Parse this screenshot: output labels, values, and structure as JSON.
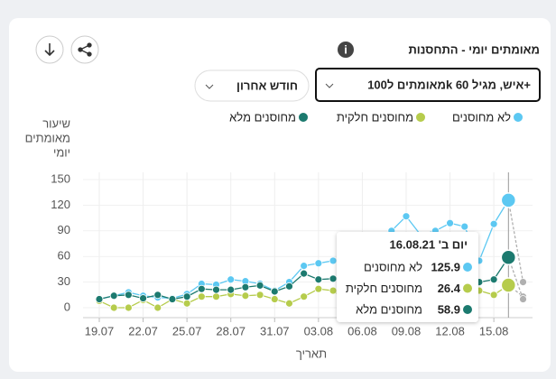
{
  "header": {
    "title": "מאומתים יומי - התחסנות",
    "measure_select": "מאומתים ל100k איש, מגיל 60+",
    "period_select": "חודש אחרון"
  },
  "chart_data": {
    "type": "line",
    "y_label": [
      "שיעור",
      "מאומתים",
      "יומי"
    ],
    "x_label": "תאריך",
    "categories": [
      "19.07",
      null,
      null,
      "22.07",
      null,
      null,
      "25.07",
      null,
      null,
      "28.07",
      null,
      null,
      "31.07",
      null,
      null,
      "03.08",
      null,
      null,
      "06.08",
      null,
      null,
      "09.08",
      null,
      null,
      "12.08",
      null,
      null,
      "15.08",
      null,
      null
    ],
    "ylim": [
      0,
      150
    ],
    "yticks": [
      0,
      30,
      60,
      90,
      120,
      150
    ],
    "grid": true,
    "incomplete_color": "#b0b0b0",
    "series": [
      {
        "name": "לא מחוסנים",
        "color": "#5cc8f2",
        "values": [
          10,
          14,
          18,
          14,
          12,
          11,
          16,
          28,
          27,
          33,
          31,
          28,
          20,
          30,
          49,
          52,
          55,
          58,
          60,
          75,
          90,
          107,
          85,
          90,
          99,
          95,
          55,
          98,
          125.9,
          30
        ]
      },
      {
        "name": "מחוסנים חלקית",
        "color": "#b6cc4c",
        "values": [
          8,
          0,
          0,
          9,
          0,
          10,
          5,
          13,
          13,
          16,
          14,
          15,
          10,
          5,
          13,
          22,
          20,
          8,
          15,
          18,
          20,
          22,
          20,
          18,
          20,
          16,
          20,
          15,
          26.4,
          13
        ]
      },
      {
        "name": "מחוסנים מלא",
        "color": "#1c7a6f",
        "values": [
          10,
          14,
          15,
          11,
          15,
          10,
          13,
          22,
          21,
          21,
          24,
          26,
          19,
          25,
          40,
          33,
          34,
          30,
          32,
          33,
          35,
          36,
          30,
          28,
          28,
          26,
          30,
          33,
          58.9,
          10
        ]
      }
    ],
    "tooltip": {
      "index": 28,
      "title": "יום ב' 16.08.21"
    }
  }
}
